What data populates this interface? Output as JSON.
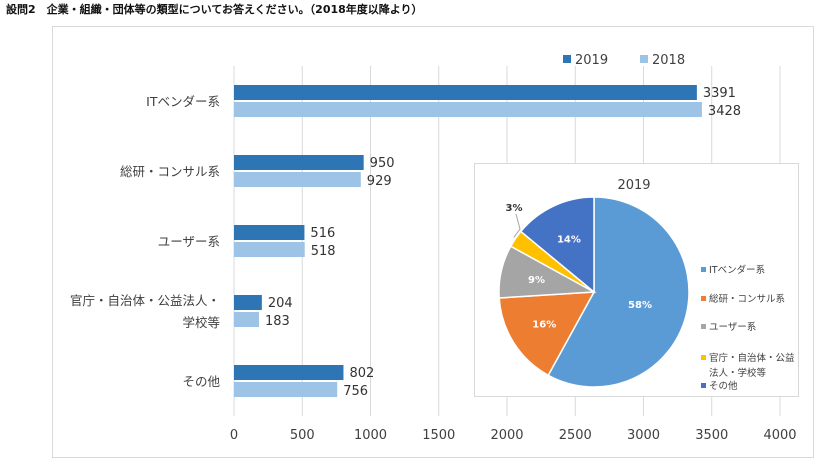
{
  "page": {
    "heading": "設問2　企業・組織・団体等の類型についてお答えください。（2018年度以降より）"
  },
  "colors": {
    "series_2019": "#2e75b6",
    "series_2018": "#9dc3e6",
    "pie_it": "#5b9bd5",
    "pie_consul": "#ed7d31",
    "pie_user": "#a5a5a5",
    "pie_public": "#ffc000",
    "pie_other": "#4472c4"
  },
  "chart_data": [
    {
      "type": "bar",
      "orientation": "horizontal",
      "categories": [
        "ITベンダー系",
        "総研・コンサル系",
        "ユーザー系",
        "官庁・自治体・公益法人・学校等",
        "その他"
      ],
      "category_label_lines": [
        [
          "ITベンダー系"
        ],
        [
          "総研・コンサル系"
        ],
        [
          "ユーザー系"
        ],
        [
          "官庁・自治体・公益法人・",
          "学校等"
        ],
        [
          "その他"
        ]
      ],
      "series": [
        {
          "name": "2019",
          "values": [
            3391,
            950,
            516,
            204,
            802
          ]
        },
        {
          "name": "2018",
          "values": [
            3428,
            929,
            518,
            183,
            756
          ]
        }
      ],
      "xlim": [
        0,
        4000
      ],
      "xticks": [
        0,
        500,
        1000,
        1500,
        2000,
        2500,
        3000,
        3500,
        4000
      ],
      "xgrid": true,
      "legend_position": "top-right",
      "data_labels": true
    },
    {
      "type": "pie",
      "title": "2019",
      "labels": [
        "ITベンダー系",
        "総研・コンサル系",
        "ユーザー系",
        "官庁・自治体・公益法人・学校等",
        "その他"
      ],
      "legend_lines": [
        [
          "ITベンダー系"
        ],
        [
          "総研・コンサル系"
        ],
        [
          "ユーザー系"
        ],
        [
          "官庁・自治体・公益",
          "法人・学校等"
        ],
        [
          "その他"
        ]
      ],
      "values": [
        58,
        16,
        9,
        3,
        14
      ],
      "value_labels": [
        "58%",
        "16%",
        "9%",
        "3%",
        "14%"
      ],
      "legend_position": "right"
    }
  ]
}
